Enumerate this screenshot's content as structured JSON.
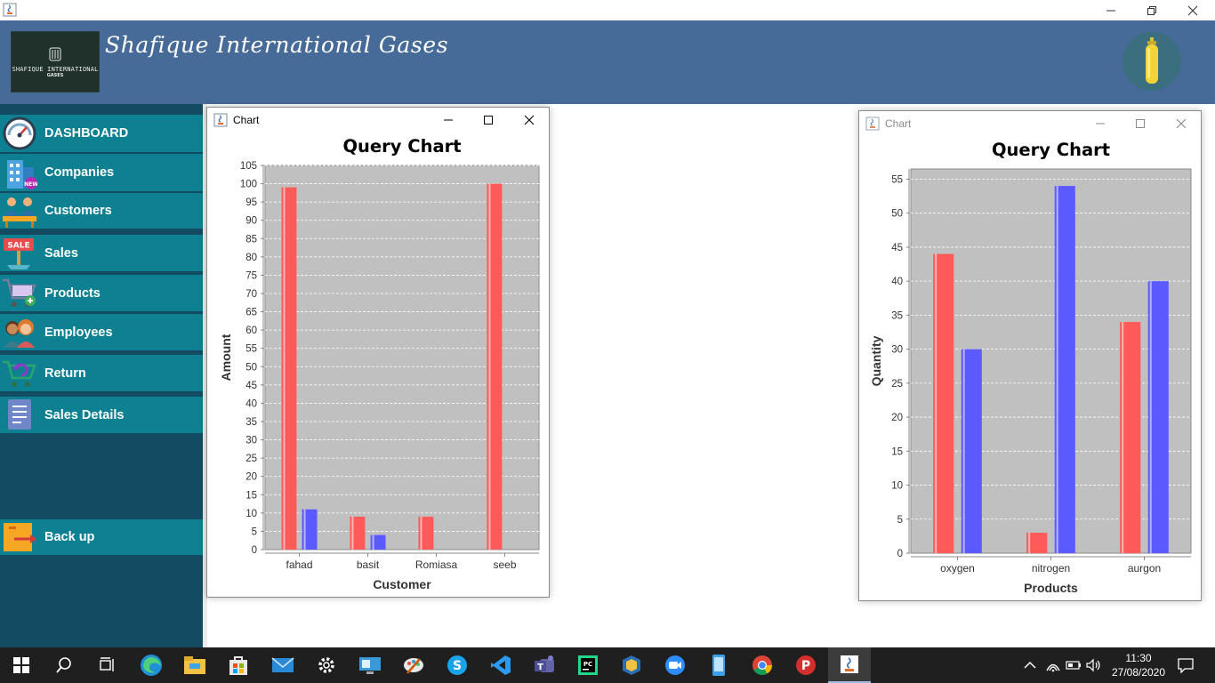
{
  "app": {
    "title": "Shafique International Gases",
    "logo_text": "SHAFIQUE INTERNATIONAL",
    "logo_sub": "GASES"
  },
  "window_controls": [
    "minimize",
    "restore",
    "close"
  ],
  "sidebar": {
    "items": [
      {
        "label": "DASHBOARD",
        "icon": "speedometer-icon"
      },
      {
        "label": "Companies",
        "icon": "building-icon"
      },
      {
        "label": "Customers",
        "icon": "customers-icon"
      },
      {
        "label": "Sales",
        "icon": "sale-sign-icon"
      },
      {
        "label": "Products",
        "icon": "shopping-cart-icon"
      },
      {
        "label": "Employees",
        "icon": "employees-icon"
      },
      {
        "label": "Return",
        "icon": "return-cart-icon"
      },
      {
        "label": "Sales Details",
        "icon": "document-icon"
      },
      {
        "label": "Back up",
        "icon": "backup-icon"
      }
    ]
  },
  "charts": {
    "left": {
      "window_title": "Chart"
    },
    "right": {
      "window_title": "Chart"
    }
  },
  "chart_data": [
    {
      "type": "bar",
      "title": "Query Chart",
      "xlabel": "Customer",
      "ylabel": "Amount",
      "categories": [
        "fahad",
        "basit",
        "Romiasa",
        "seeb"
      ],
      "series": [
        {
          "values": [
            99,
            9,
            9,
            100
          ],
          "color": "#ff5a5a"
        },
        {
          "values": [
            11,
            4,
            null,
            null
          ],
          "color": "#5a5aff"
        }
      ],
      "ylim": [
        0,
        105
      ],
      "yticks": [
        0,
        5,
        10,
        15,
        20,
        25,
        30,
        35,
        40,
        45,
        50,
        55,
        60,
        65,
        70,
        75,
        80,
        85,
        90,
        95,
        100,
        105
      ],
      "grid": true,
      "plot_background": "#c0c0c0"
    },
    {
      "type": "bar",
      "title": "Query Chart",
      "xlabel": "Products",
      "ylabel": "Quantity",
      "categories": [
        "oxygen",
        "nitrogen",
        "aurgon"
      ],
      "series": [
        {
          "values": [
            44,
            3,
            34
          ],
          "color": "#ff5a5a"
        },
        {
          "values": [
            30,
            54,
            40
          ],
          "color": "#5a5aff"
        }
      ],
      "ylim": [
        0,
        56.5
      ],
      "yticks": [
        0,
        5,
        10,
        15,
        20,
        25,
        30,
        35,
        40,
        45,
        50,
        55
      ],
      "grid": true,
      "plot_background": "#c0c0c0"
    }
  ],
  "taskbar": {
    "apps": [
      "start-icon",
      "search-icon",
      "task-view-icon",
      "edge-icon",
      "file-explorer-icon",
      "store-icon",
      "mail-icon",
      "settings-icon",
      "remote-desktop-icon",
      "paint-icon",
      "skype-icon",
      "vscode-icon",
      "teams-icon",
      "pycharm-icon",
      "virtualbox-icon",
      "zoom-icon",
      "phone-icon",
      "chrome-icon",
      "psiphon-icon",
      "java-icon"
    ],
    "time": "11:30",
    "date": "27/08/2020"
  }
}
